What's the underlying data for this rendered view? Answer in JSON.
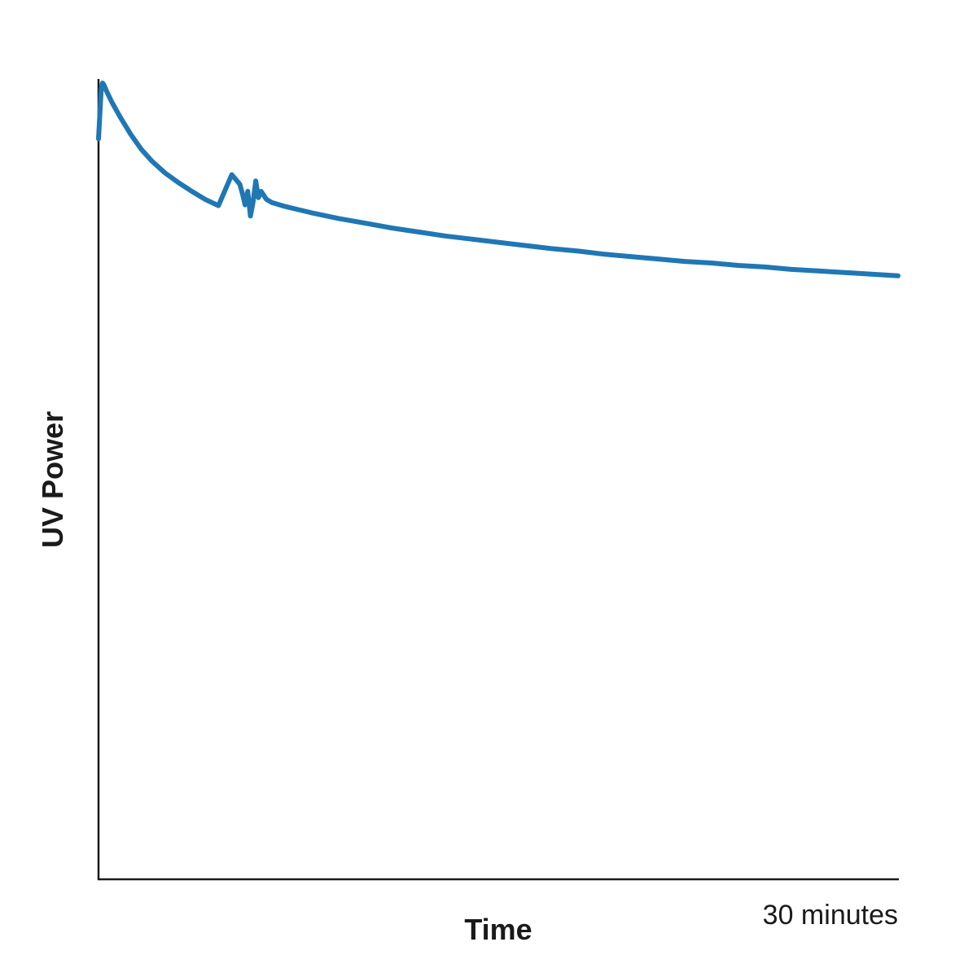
{
  "chart_data": {
    "type": "line",
    "xlabel": "Time",
    "ylabel": "UV Power",
    "x_tick_labels": [
      {
        "x": 30,
        "label": "30 minutes"
      }
    ],
    "xlim": [
      0,
      30
    ],
    "ylim": [
      0,
      100
    ],
    "grid": false,
    "legend": "none",
    "series": [
      {
        "color": "#1f77b4",
        "x": [
          0.0,
          0.05,
          0.1,
          0.15,
          0.2,
          0.3,
          0.5,
          0.8,
          1.2,
          1.6,
          2.0,
          2.5,
          3.0,
          3.5,
          4.0,
          4.5,
          5.0,
          5.3,
          5.4,
          5.5,
          5.6,
          5.7,
          5.8,
          5.9,
          6.0,
          6.1,
          6.2,
          6.3,
          6.5,
          7.0,
          7.5,
          8.0,
          9.0,
          10.0,
          11.0,
          12.0,
          13.0,
          14.0,
          15.0,
          16.0,
          17.0,
          18.0,
          19.0,
          20.0,
          21.0,
          22.0,
          23.0,
          24.0,
          25.0,
          26.0,
          27.0,
          28.0,
          29.0,
          30.0
        ],
        "y": [
          93.0,
          96.0,
          99.2,
          100.0,
          99.8,
          99.0,
          97.6,
          95.8,
          93.6,
          91.7,
          90.2,
          88.7,
          87.5,
          86.4,
          85.4,
          84.6,
          88.5,
          87.3,
          86.1,
          84.7,
          86.4,
          83.3,
          85.1,
          87.7,
          85.6,
          86.4,
          85.9,
          85.4,
          85.0,
          84.5,
          84.1,
          83.7,
          83.0,
          82.4,
          81.8,
          81.3,
          80.8,
          80.4,
          80.0,
          79.6,
          79.2,
          78.9,
          78.5,
          78.2,
          77.9,
          77.6,
          77.4,
          77.1,
          76.9,
          76.6,
          76.4,
          76.2,
          76.0,
          75.8
        ]
      }
    ]
  }
}
